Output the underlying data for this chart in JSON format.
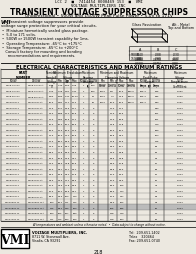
{
  "bg_color": "#ece8e0",
  "title_line1": "TRANSIENT VOLTAGE SUPPRESSOR CHIPS",
  "title_line2": "Unidirectional • 500W and 1500W Peak Pulse Power • 5.0V to 171V",
  "header_line1": "LCC 2  ■  7414454 0000469 153  ■  VMI",
  "header_line2": "VOLTAGE MULTIPLIERS INC",
  "features": [
    "Miniature hermetically sealed glass package.",
    "5.0 to 171 volts.",
    "500W or 1500W transient capability for 1ms.",
    "Operating Temperature: -65°C to +175°C",
    "Storage Temperature: -65°C to +200°C",
    "Consult factory for mounting and bonding",
    "  recommendations and requirements."
  ],
  "elec_header": "ELECTRICAL CHARACTERISTICS AND MAXIMUM RATINGS",
  "footer_company": "VOLTAGE MULTIPLIERS, INC.",
  "footer_address": "8711 W. Stonewall Ave.",
  "footer_city": "Visalia, CA 93291",
  "footer_tel": "Tel:  209-651-1402",
  "footer_telex": "Telex    320464",
  "footer_fax": "Fax: 209-651-0740",
  "page_num": "218",
  "table_rows": [
    [
      "VSC5.0U171",
      "VSC5.0U171A",
      "5.00",
      "3.40",
      "5.50",
      "6.05",
      "1",
      "200",
      "1000",
      "5.0",
      "8.5",
      "600.0",
      "265.4",
      "410",
      "0.037"
    ],
    [
      "VSC6.0U171",
      "VSC6.0U171A",
      "6.00",
      "4.05",
      "6.67",
      "7.34",
      "1",
      "150",
      "1000",
      "5.8",
      "10.0",
      "600.0",
      "265.4",
      "395",
      "0.032"
    ],
    [
      "VSC8.5U171",
      "VSC8.5U171A",
      "8.50",
      "5.80",
      "9.44",
      "10.40",
      "1",
      "50",
      "1000",
      "7.0",
      "13.6",
      "600.0",
      "265.4",
      "355",
      "0.030"
    ],
    [
      "VSC10U171",
      "VSC10U171A",
      "10.0",
      "6.81",
      "11.1",
      "12.2",
      "1",
      "15",
      "1000",
      "10.0",
      "16.2",
      "600.0",
      "265.4",
      "300",
      "0.031"
    ],
    [
      "VSC12U171",
      "VSC12U171A",
      "12.0",
      "8.17",
      "13.3",
      "14.7",
      "1",
      "5",
      "",
      "11.0",
      "17.1",
      "",
      "",
      "300",
      "0.044"
    ],
    [
      "VSC13U171",
      "VSC13U171A",
      "13.0",
      "8.85",
      "14.4",
      "15.9",
      "1",
      "5",
      "",
      "12.0",
      "19.9",
      "",
      "",
      "251",
      "0.044"
    ],
    [
      "VSC14U171",
      "VSC14U171A",
      "14.0",
      "9.52",
      "15.6",
      "17.1",
      "1",
      "5",
      "",
      "12.0",
      "19.9",
      "",
      "",
      "251",
      "0.044"
    ],
    [
      "VSC15U171",
      "VSC15U171A",
      "15.0",
      "10.2",
      "16.7",
      "18.3",
      "1",
      "5",
      "",
      "13.5",
      "22.8",
      "",
      "",
      "219",
      "0.044"
    ],
    [
      "VSC18U171",
      "VSC18U171A",
      "18.0",
      "12.3",
      "20.0",
      "22.0",
      "1",
      "5",
      "",
      "15.0",
      "26.4",
      "",
      "",
      "189",
      "0.044"
    ],
    [
      "VSC22U171",
      "VSC22U171A",
      "22.0",
      "15.0",
      "24.4",
      "26.9",
      "1",
      "5",
      "",
      "18.5",
      "32.4",
      "",
      "",
      "154",
      "0.044"
    ],
    [
      "VSC27U171",
      "VSC27U171A",
      "27.0",
      "18.4",
      "30.0",
      "33.0",
      "1",
      "5",
      "",
      "22.5",
      "39.9",
      "",
      "",
      "125",
      "0.044"
    ],
    [
      "VSC33U171",
      "VSC33U171A",
      "33.0",
      "22.5",
      "36.7",
      "40.3",
      "1",
      "5",
      "",
      "30.0",
      "52.7",
      "",
      "",
      "95",
      "0.044"
    ],
    [
      "VSC36U171",
      "VSC36U171A",
      "36.0",
      "24.5",
      "40.0",
      "44.0",
      "1",
      "5",
      "",
      "33.0",
      "59.8",
      "",
      "",
      "83",
      "0.044"
    ],
    [
      "VSC39U171",
      "VSC39U171A",
      "39.0",
      "26.5",
      "43.3",
      "47.7",
      "1",
      "5",
      "",
      "35.5",
      "62.8",
      "",
      "",
      "79",
      "0.044"
    ],
    [
      "VSC43U171",
      "VSC43U171A",
      "43.0",
      "29.3",
      "47.8",
      "52.6",
      "1",
      "5",
      "",
      "40.0",
      "70.8",
      "",
      "",
      "70",
      "0.044"
    ],
    [
      "VSC51U171",
      "VSC51U171A",
      "51.0",
      "34.7",
      "56.7",
      "62.4",
      "1",
      "5",
      "",
      "46.5",
      "83.0",
      "",
      "",
      "60",
      "0.044"
    ],
    [
      "VSC58U171",
      "VSC58U171A",
      "58.0",
      "39.5",
      "64.4",
      "70.9",
      "1",
      "5",
      "",
      "50.0",
      "88.0",
      "",
      "",
      "56",
      "0.044"
    ],
    [
      "VSC64U171",
      "VSC64U171A",
      "64.0",
      "43.6",
      "71.1",
      "78.3",
      "1",
      "5",
      "",
      "55.0",
      "97.0",
      "",
      "",
      "51",
      "0.044"
    ],
    [
      "VSC70U171",
      "VSC70U171A",
      "70.0",
      "47.6",
      "77.8",
      "85.5",
      "1",
      "5",
      "",
      "60.0",
      "106",
      "",
      "",
      "47",
      "0.044"
    ],
    [
      "VSC75U171",
      "VSC75U171A",
      "75.0",
      "51.1",
      "83.3",
      "91.7",
      "1",
      "5",
      "",
      "65.0",
      "114",
      "",
      "",
      "43",
      "0.044"
    ],
    [
      "VSC90U171",
      "VSC90U171A",
      "90.0",
      "61.3",
      "100",
      "110",
      "1",
      "5",
      "",
      "75.0",
      "137",
      "",
      "",
      "36",
      "0.044"
    ],
    [
      "VSC100U171",
      "VSC100U171A",
      "100",
      "68.1",
      "111",
      "122",
      "1",
      "5",
      "",
      "85.0",
      "152",
      "",
      "",
      "32",
      "0.044"
    ],
    [
      "VSC125U171",
      "VSC125U171A",
      "125",
      "85.1",
      "139",
      "153",
      "1",
      "5",
      "",
      "105",
      "185",
      "",
      "",
      "26",
      "0.044"
    ],
    [
      "VSC150U171",
      "VSC150U171A",
      "150",
      "102",
      "167",
      "183",
      "1",
      "5",
      "",
      "128",
      "219",
      "",
      "",
      "22",
      "0.044"
    ],
    [
      "VSC171U171",
      "VSC171U171A",
      "171",
      "116",
      "190",
      "209",
      "1",
      "5",
      "",
      "148",
      "254",
      "",
      "",
      "19",
      "0.044"
    ]
  ],
  "highlight_row": 22
}
